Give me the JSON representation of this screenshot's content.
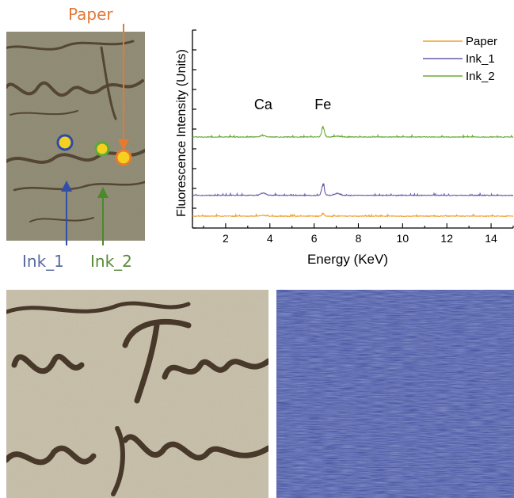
{
  "labels": {
    "paper": "Paper",
    "ink1": "Ink_1",
    "ink2": "Ink_2"
  },
  "colors": {
    "paper": "#f0a030",
    "ink1": "#6a5aa8",
    "ink2": "#6aaa3a",
    "paper_label": "#e07a3a",
    "ink1_label": "#5a6aa0",
    "ink2_label": "#5a8a3a",
    "ink1_arrow": "#3050a8",
    "ink2_arrow": "#4a8a2a",
    "paper_arrow": "#e87a30"
  },
  "chart_data": {
    "type": "line",
    "title": "",
    "xlabel": "Energy (KeV)",
    "ylabel": "Fluorescence Intensity (Units)",
    "xlim": [
      0.5,
      15
    ],
    "xticks": [
      2,
      4,
      6,
      8,
      10,
      12,
      14
    ],
    "ylim": [
      0,
      100
    ],
    "legend_position": "top-right",
    "annotations": [
      {
        "text": "Ca",
        "x": 3.7
      },
      {
        "text": "Fe",
        "x": 6.4
      }
    ],
    "series": [
      {
        "name": "Paper",
        "color": "#f0a030",
        "baseline": 6.0,
        "peaks": [
          {
            "x": 3.7,
            "h": 0.4
          },
          {
            "x": 6.4,
            "h": 1.2
          }
        ]
      },
      {
        "name": "Ink_1",
        "color": "#6a5aa8",
        "baseline": 16.5,
        "peaks": [
          {
            "x": 3.7,
            "h": 1.2
          },
          {
            "x": 6.4,
            "h": 6.0
          },
          {
            "x": 7.05,
            "h": 1.0
          }
        ]
      },
      {
        "name": "Ink_2",
        "color": "#6aaa3a",
        "baseline": 46.0,
        "peaks": [
          {
            "x": 3.7,
            "h": 0.6
          },
          {
            "x": 6.4,
            "h": 4.8
          },
          {
            "x": 7.05,
            "h": 0.5
          }
        ]
      }
    ]
  }
}
